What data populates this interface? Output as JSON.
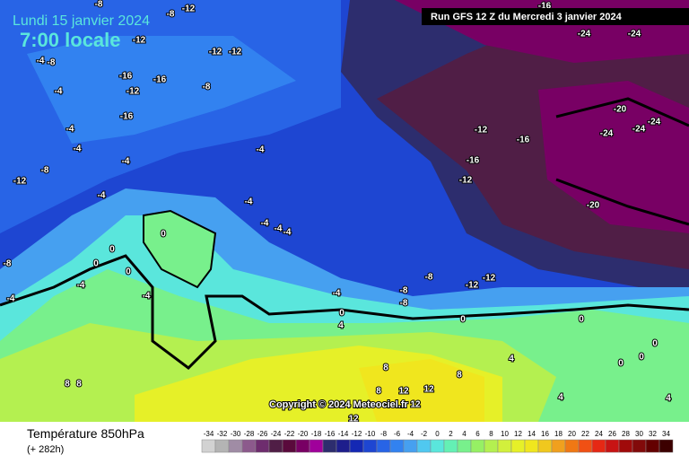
{
  "header": {
    "date": "Lundi 15 janvier 2024",
    "time": "7:00 locale",
    "run": "Run GFS 12 Z du Mercredi 3 janvier 2024"
  },
  "copyright": "Copyright © 2024 Meteociel.fr",
  "legend": {
    "title": "Température 850hPa",
    "lead": "(+ 282h)"
  },
  "color_scale": {
    "values": [
      -34,
      -32,
      -30,
      -28,
      -26,
      -24,
      -22,
      -20,
      -18,
      -16,
      -14,
      -12,
      -10,
      -8,
      -6,
      -4,
      -2,
      0,
      2,
      4,
      6,
      8,
      10,
      12,
      14,
      16,
      18,
      20,
      22,
      24,
      26,
      28,
      30,
      32,
      34
    ],
    "colors": [
      "#d2d2d2",
      "#b4b4b4",
      "#a08ca5",
      "#8c5a8c",
      "#6e2d6e",
      "#501e46",
      "#5a0a3c",
      "#780064",
      "#a0009b",
      "#2d2d6e",
      "#1e1e8c",
      "#1428b4",
      "#1e46d2",
      "#2864e6",
      "#3282f0",
      "#46a0f0",
      "#50c8f0",
      "#5ae6dc",
      "#64f0b4",
      "#78f08c",
      "#96f064",
      "#b4f050",
      "#d2f03c",
      "#e6f028",
      "#f0e61e",
      "#f0c81e",
      "#f0a01e",
      "#f07814",
      "#f05014",
      "#e62814",
      "#c81414",
      "#a00a0a",
      "#820a0a",
      "#640000",
      "#3c0000"
    ]
  },
  "map_labels": [
    -8,
    -12,
    -16,
    -12,
    -12,
    -12,
    -4,
    -8,
    -8,
    -16,
    -16,
    -12,
    -8,
    -4,
    -16,
    -4,
    -4,
    -4,
    -8,
    -12,
    -4,
    -4,
    -4,
    -4,
    -4,
    -4,
    0,
    0,
    0,
    0,
    -4,
    -4,
    -4,
    -8,
    -12,
    -16,
    -16,
    -12,
    -12,
    -12,
    -8,
    -8,
    -8,
    -4,
    0,
    4,
    -20,
    -24,
    -24,
    -24,
    -20,
    -24,
    -24,
    0,
    4,
    4,
    8,
    8,
    8,
    8,
    12,
    12,
    12,
    8,
    12,
    0,
    0,
    0,
    0,
    4
  ]
}
